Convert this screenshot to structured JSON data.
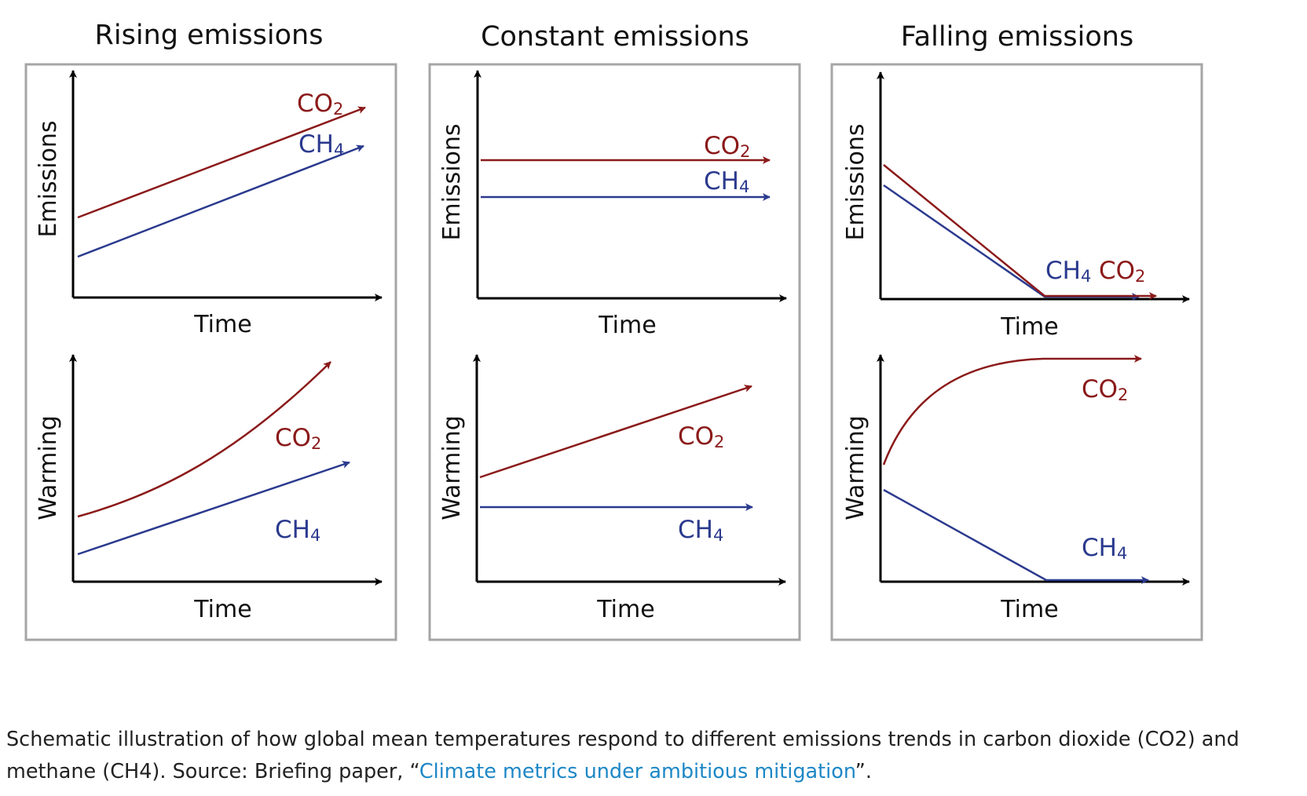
{
  "colors": {
    "co2": "#8b1a1a",
    "ch4": "#2b3a8e",
    "axis": "#000000",
    "frame": "#a5a5a5",
    "link": "#1d87c6",
    "text": "#222222"
  },
  "panels": [
    {
      "id": "rising",
      "title": "Rising emissions",
      "top": {
        "ylabel": "Emissions",
        "xlabel": "Time",
        "co2_label": {
          "main": "CO",
          "sub": "2"
        },
        "ch4_label": {
          "main": "CH",
          "sub": "4"
        }
      },
      "bottom": {
        "ylabel": "Warming",
        "xlabel": "Time",
        "co2_label": {
          "main": "CO",
          "sub": "2"
        },
        "ch4_label": {
          "main": "CH",
          "sub": "4"
        }
      }
    },
    {
      "id": "constant",
      "title": "Constant emissions",
      "top": {
        "ylabel": "Emissions",
        "xlabel": "Time",
        "co2_label": {
          "main": "CO",
          "sub": "2"
        },
        "ch4_label": {
          "main": "CH",
          "sub": "4"
        }
      },
      "bottom": {
        "ylabel": "Warming",
        "xlabel": "Time",
        "co2_label": {
          "main": "CO",
          "sub": "2"
        },
        "ch4_label": {
          "main": "CH",
          "sub": "4"
        }
      }
    },
    {
      "id": "falling",
      "title": "Falling emissions",
      "top": {
        "ylabel": "Emissions",
        "xlabel": "Time",
        "co2_label": {
          "main": "CO",
          "sub": "2"
        },
        "ch4_label": {
          "main": "CH",
          "sub": "4"
        }
      },
      "bottom": {
        "ylabel": "Warming",
        "xlabel": "Time",
        "co2_label": {
          "main": "CO",
          "sub": "2"
        },
        "ch4_label": {
          "main": "CH",
          "sub": "4"
        }
      }
    }
  ],
  "caption": {
    "text_before": "Schematic illustration of how global mean temperatures respond to different emissions trends in carbon dioxide (CO2) and methane (CH4). Source: Briefing paper, “",
    "link_text": "Climate metrics under ambitious mitigation",
    "text_after": "”."
  }
}
